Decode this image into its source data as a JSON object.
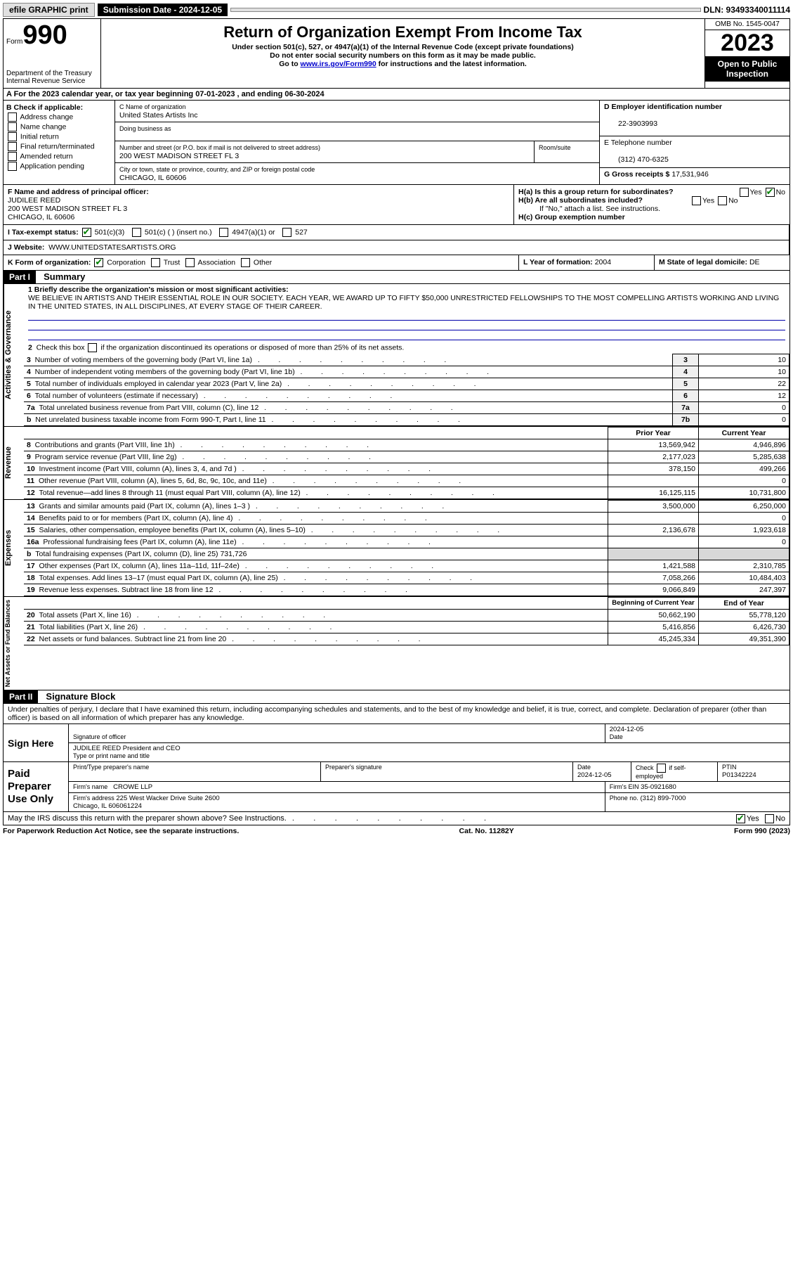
{
  "topbar": {
    "efile": "efile GRAPHIC print",
    "submission_label": "Submission Date - 2024-12-05",
    "dln": "DLN: 93493340011114"
  },
  "header": {
    "form_word": "Form",
    "form_no": "990",
    "dept": "Department of the Treasury\nInternal Revenue Service",
    "title": "Return of Organization Exempt From Income Tax",
    "sub1": "Under section 501(c), 527, or 4947(a)(1) of the Internal Revenue Code (except private foundations)",
    "sub2": "Do not enter social security numbers on this form as it may be made public.",
    "sub3_pre": "Go to ",
    "sub3_link": "www.irs.gov/Form990",
    "sub3_post": " for instructions and the latest information.",
    "omb": "OMB No. 1545-0047",
    "year": "2023",
    "inspection": "Open to Public Inspection"
  },
  "row_a": "A  For the 2023 calendar year, or tax year beginning 07-01-2023   , and ending 06-30-2024",
  "b": {
    "label": "B Check if applicable:",
    "opts": [
      "Address change",
      "Name change",
      "Initial return",
      "Final return/terminated",
      "Amended return",
      "Application pending"
    ]
  },
  "c": {
    "name_label": "C Name of organization",
    "name": "United States Artists Inc",
    "dba_label": "Doing business as",
    "dba": "",
    "street_label": "Number and street (or P.O. box if mail is not delivered to street address)",
    "room_label": "Room/suite",
    "street": "200 WEST MADISON STREET FL 3",
    "city_label": "City or town, state or province, country, and ZIP or foreign postal code",
    "city": "CHICAGO, IL  60606"
  },
  "d": {
    "label": "D Employer identification number",
    "val": "22-3903993"
  },
  "e": {
    "label": "E Telephone number",
    "val": "(312) 470-6325"
  },
  "g": {
    "label": "G Gross receipts $",
    "val": "17,531,946"
  },
  "f": {
    "label": "F Name and address of principal officer:",
    "name": "JUDILEE REED",
    "addr1": "200 WEST MADISON STREET FL 3",
    "addr2": "CHICAGO, IL  60606"
  },
  "h": {
    "a": "H(a)  Is this a group return for subordinates?",
    "b": "H(b)  Are all subordinates included?",
    "b_note": "If \"No,\" attach a list. See instructions.",
    "c": "H(c)  Group exemption number ",
    "yes": "Yes",
    "no": "No"
  },
  "i": {
    "label": "I   Tax-exempt status:",
    "o1": "501(c)(3)",
    "o2": "501(c) (  ) (insert no.)",
    "o3": "4947(a)(1) or",
    "o4": "527"
  },
  "j": {
    "label": "J   Website:",
    "val": "WWW.UNITEDSTATESARTISTS.ORG"
  },
  "k": {
    "label": "K Form of organization:",
    "o1": "Corporation",
    "o2": "Trust",
    "o3": "Association",
    "o4": "Other"
  },
  "l": {
    "label": "L Year of formation:",
    "val": "2004"
  },
  "m": {
    "label": "M State of legal domicile:",
    "val": "DE"
  },
  "part1": {
    "tag": "Part I",
    "title": "Summary"
  },
  "vlabels": {
    "gov": "Activities & Governance",
    "rev": "Revenue",
    "exp": "Expenses",
    "net": "Net Assets or Fund Balances"
  },
  "mission": {
    "label": "1   Briefly describe the organization's mission or most significant activities:",
    "text": "WE BELIEVE IN ARTISTS AND THEIR ESSENTIAL ROLE IN OUR SOCIETY. EACH YEAR, WE AWARD UP TO FIFTY $50,000 UNRESTRICTED FELLOWSHIPS TO THE MOST COMPELLING ARTISTS WORKING AND LIVING IN THE UNITED STATES, IN ALL DISCIPLINES, AT EVERY STAGE OF THEIR CAREER."
  },
  "line2": "2   Check this box        if the organization discontinued its operations or disposed of more than 25% of its net assets.",
  "gov_lines": [
    {
      "n": "3",
      "t": "Number of voting members of the governing body (Part VI, line 1a)",
      "box": "3",
      "v": "10"
    },
    {
      "n": "4",
      "t": "Number of independent voting members of the governing body (Part VI, line 1b)",
      "box": "4",
      "v": "10"
    },
    {
      "n": "5",
      "t": "Total number of individuals employed in calendar year 2023 (Part V, line 2a)",
      "box": "5",
      "v": "22"
    },
    {
      "n": "6",
      "t": "Total number of volunteers (estimate if necessary)",
      "box": "6",
      "v": "12"
    },
    {
      "n": "7a",
      "t": "Total unrelated business revenue from Part VIII, column (C), line 12",
      "box": "7a",
      "v": "0"
    },
    {
      "n": "b",
      "t": "Net unrelated business taxable income from Form 990-T, Part I, line 11",
      "box": "7b",
      "v": "0"
    }
  ],
  "cols": {
    "prior": "Prior Year",
    "current": "Current Year",
    "begin": "Beginning of Current Year",
    "end": "End of Year"
  },
  "rev_lines": [
    {
      "n": "8",
      "t": "Contributions and grants (Part VIII, line 1h)",
      "p": "13,569,942",
      "c": "4,946,896"
    },
    {
      "n": "9",
      "t": "Program service revenue (Part VIII, line 2g)",
      "p": "2,177,023",
      "c": "5,285,638"
    },
    {
      "n": "10",
      "t": "Investment income (Part VIII, column (A), lines 3, 4, and 7d )",
      "p": "378,150",
      "c": "499,266"
    },
    {
      "n": "11",
      "t": "Other revenue (Part VIII, column (A), lines 5, 6d, 8c, 9c, 10c, and 11e)",
      "p": "",
      "c": "0"
    },
    {
      "n": "12",
      "t": "Total revenue—add lines 8 through 11 (must equal Part VIII, column (A), line 12)",
      "p": "16,125,115",
      "c": "10,731,800"
    }
  ],
  "exp_lines": [
    {
      "n": "13",
      "t": "Grants and similar amounts paid (Part IX, column (A), lines 1–3 )",
      "p": "3,500,000",
      "c": "6,250,000"
    },
    {
      "n": "14",
      "t": "Benefits paid to or for members (Part IX, column (A), line 4)",
      "p": "",
      "c": "0"
    },
    {
      "n": "15",
      "t": "Salaries, other compensation, employee benefits (Part IX, column (A), lines 5–10)",
      "p": "2,136,678",
      "c": "1,923,618"
    },
    {
      "n": "16a",
      "t": "Professional fundraising fees (Part IX, column (A), line 11e)",
      "p": "",
      "c": "0"
    },
    {
      "n": "b",
      "t": "Total fundraising expenses (Part IX, column (D), line 25) 731,726",
      "p": "grey",
      "c": "grey"
    },
    {
      "n": "17",
      "t": "Other expenses (Part IX, column (A), lines 11a–11d, 11f–24e)",
      "p": "1,421,588",
      "c": "2,310,785"
    },
    {
      "n": "18",
      "t": "Total expenses. Add lines 13–17 (must equal Part IX, column (A), line 25)",
      "p": "7,058,266",
      "c": "10,484,403"
    },
    {
      "n": "19",
      "t": "Revenue less expenses. Subtract line 18 from line 12",
      "p": "9,066,849",
      "c": "247,397"
    }
  ],
  "net_lines": [
    {
      "n": "20",
      "t": "Total assets (Part X, line 16)",
      "p": "50,662,190",
      "c": "55,778,120"
    },
    {
      "n": "21",
      "t": "Total liabilities (Part X, line 26)",
      "p": "5,416,856",
      "c": "6,426,730"
    },
    {
      "n": "22",
      "t": "Net assets or fund balances. Subtract line 21 from line 20",
      "p": "45,245,334",
      "c": "49,351,390"
    }
  ],
  "part2": {
    "tag": "Part II",
    "title": "Signature Block"
  },
  "perjury": "Under penalties of perjury, I declare that I have examined this return, including accompanying schedules and statements, and to the best of my knowledge and belief, it is true, correct, and complete. Declaration of preparer (other than officer) is based on all information of which preparer has any knowledge.",
  "sign": {
    "here": "Sign Here",
    "sig_label": "Signature of officer",
    "date_label": "Date",
    "date": "2024-12-05",
    "name": "JUDILEE REED President and CEO",
    "name_label": "Type or print name and title"
  },
  "paid": {
    "label": "Paid Preparer Use Only",
    "c1": "Print/Type preparer's name",
    "c2": "Preparer's signature",
    "c3": "Date",
    "c3v": "2024-12-05",
    "c4": "Check          if self-employed",
    "c5": "PTIN",
    "c5v": "P01342224",
    "firm_label": "Firm's name",
    "firm": "CROWE LLP",
    "ein_label": "Firm's EIN",
    "ein": "35-0921680",
    "addr_label": "Firm's address",
    "addr": "225 West Wacker Drive Suite 2600\nChicago, IL  606061224",
    "phone_label": "Phone no.",
    "phone": "(312) 899-7000"
  },
  "discuss": "May the IRS discuss this return with the preparer shown above? See Instructions.",
  "footer": {
    "left": "For Paperwork Reduction Act Notice, see the separate instructions.",
    "mid": "Cat. No. 11282Y",
    "right": "Form 990 (2023)"
  }
}
